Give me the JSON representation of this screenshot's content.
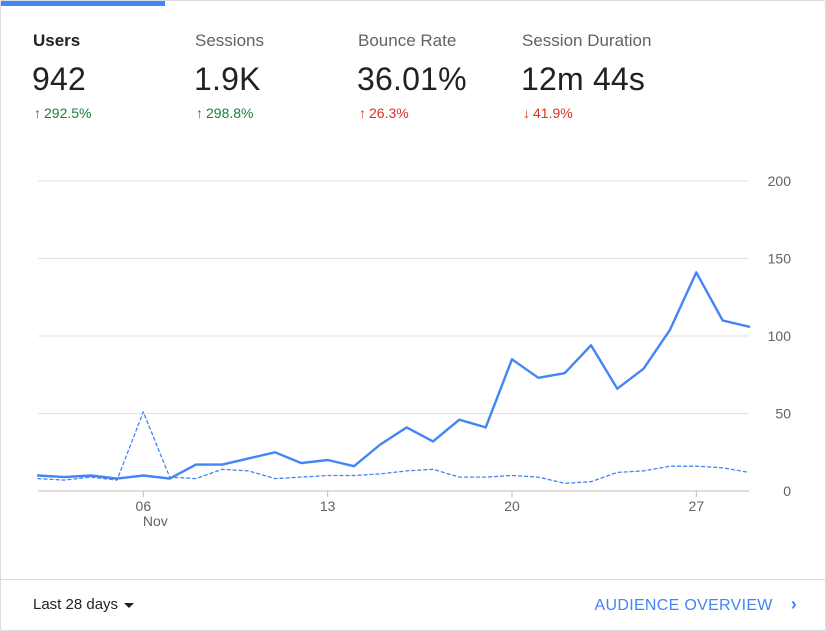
{
  "tabs": [
    {
      "label": "Users",
      "value": "942",
      "change": "292.5%",
      "direction": "up",
      "change_color": "#188038"
    },
    {
      "label": "Sessions",
      "value": "1.9K",
      "change": "298.8%",
      "direction": "up",
      "change_color": "#188038"
    },
    {
      "label": "Bounce Rate",
      "value": "36.01%",
      "change": "26.3%",
      "direction": "up",
      "change_color": "#d93025"
    },
    {
      "label": "Session Duration",
      "value": "12m 44s",
      "change": "41.9%",
      "direction": "down",
      "change_color": "#d93025"
    }
  ],
  "active_tab": 0,
  "arrows": {
    "up": "↑",
    "down": "↓"
  },
  "chart_data": {
    "type": "line",
    "x": [
      "Nov 2",
      "Nov 3",
      "Nov 4",
      "Nov 5",
      "Nov 6",
      "Nov 7",
      "Nov 8",
      "Nov 9",
      "Nov 10",
      "Nov 11",
      "Nov 12",
      "Nov 13",
      "Nov 14",
      "Nov 15",
      "Nov 16",
      "Nov 17",
      "Nov 18",
      "Nov 19",
      "Nov 20",
      "Nov 21",
      "Nov 22",
      "Nov 23",
      "Nov 24",
      "Nov 25",
      "Nov 26",
      "Nov 27",
      "Nov 28",
      "Nov 29"
    ],
    "x_tick_labels": [
      {
        "index": 4,
        "label": "06",
        "sublabel": "Nov"
      },
      {
        "index": 11,
        "label": "13",
        "sublabel": ""
      },
      {
        "index": 18,
        "label": "20",
        "sublabel": ""
      },
      {
        "index": 25,
        "label": "27",
        "sublabel": ""
      }
    ],
    "ylim": [
      0,
      200
    ],
    "yticks": [
      0,
      50,
      100,
      150,
      200
    ],
    "grid": true,
    "series": [
      {
        "style": "solid",
        "color": "#4285f4",
        "values": [
          10,
          9,
          10,
          8,
          10,
          8,
          17,
          17,
          21,
          25,
          18,
          20,
          16,
          30,
          41,
          32,
          46,
          41,
          85,
          73,
          76,
          94,
          66,
          79,
          104,
          141,
          110,
          106
        ]
      },
      {
        "style": "dashed",
        "color": "#4285f4",
        "values": [
          8,
          7,
          9,
          7,
          51,
          9,
          8,
          14,
          13,
          8,
          9,
          10,
          10,
          11,
          13,
          14,
          9,
          9,
          10,
          9,
          5,
          6,
          12,
          13,
          16,
          16,
          15,
          12
        ]
      }
    ]
  },
  "footer": {
    "range_label": "Last 28 days",
    "link_label": "AUDIENCE OVERVIEW"
  }
}
